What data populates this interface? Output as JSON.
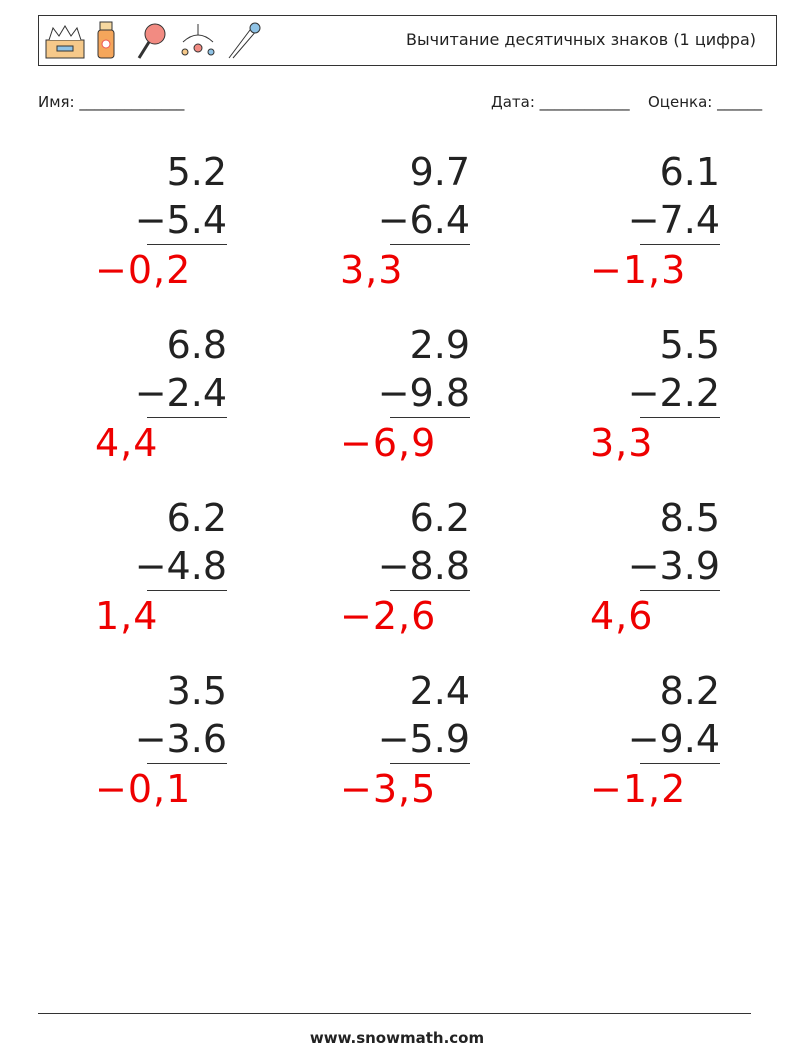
{
  "header": {
    "title": "Вычитание десятичных знаков (1 цифра)"
  },
  "fields": {
    "name": "Имя: ______________",
    "date": "Дата: ____________",
    "grade": "Оценка: ______"
  },
  "problems": [
    {
      "top": "5.2",
      "bottom": "−5.4",
      "answer": "−0,2"
    },
    {
      "top": "9.7",
      "bottom": "−6.4",
      "answer": "3,3"
    },
    {
      "top": "6.1",
      "bottom": "−7.4",
      "answer": "−1,3"
    },
    {
      "top": "6.8",
      "bottom": "−2.4",
      "answer": "4,4"
    },
    {
      "top": "2.9",
      "bottom": "−9.8",
      "answer": "−6,9"
    },
    {
      "top": "5.5",
      "bottom": "−2.2",
      "answer": "3,3"
    },
    {
      "top": "6.2",
      "bottom": "−4.8",
      "answer": "1,4"
    },
    {
      "top": "6.2",
      "bottom": "−8.8",
      "answer": "−2,6"
    },
    {
      "top": "8.5",
      "bottom": "−3.9",
      "answer": "4,6"
    },
    {
      "top": "3.5",
      "bottom": "−3.6",
      "answer": "−0,1"
    },
    {
      "top": "2.4",
      "bottom": "−5.9",
      "answer": "−3,5"
    },
    {
      "top": "8.2",
      "bottom": "−9.4",
      "answer": "−1,2"
    }
  ],
  "footer": {
    "url": "www.snowmath.com"
  }
}
